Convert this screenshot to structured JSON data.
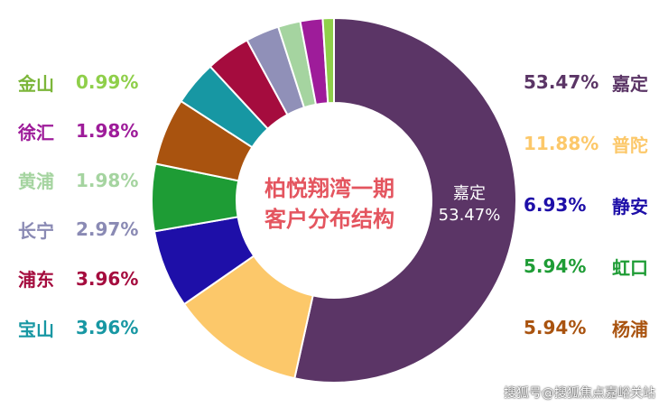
{
  "chart_data": {
    "type": "pie",
    "title_line1": "柏悦翔湾一期",
    "title_line2": "客户分布结构",
    "slices": [
      {
        "name": "嘉定",
        "label": "53.47%",
        "value": 53.47,
        "color": "#5b3566"
      },
      {
        "name": "普陀",
        "label": "11.88%",
        "value": 11.88,
        "color": "#fcc86a"
      },
      {
        "name": "静安",
        "label": "6.93%",
        "value": 6.93,
        "color": "#1e0fa8"
      },
      {
        "name": "虹口",
        "label": "5.94%",
        "value": 5.94,
        "color": "#1e9c35"
      },
      {
        "name": "杨浦",
        "label": "5.94%",
        "value": 5.94,
        "color": "#a9530f"
      },
      {
        "name": "宝山",
        "label": "3.96%",
        "value": 3.96,
        "color": "#1797a3"
      },
      {
        "name": "浦东",
        "label": "3.96%",
        "value": 3.96,
        "color": "#a50c3e"
      },
      {
        "name": "长宁",
        "label": "2.97%",
        "value": 2.97,
        "color": "#9090b8"
      },
      {
        "name": "黄浦",
        "label": "1.98%",
        "value": 1.98,
        "color": "#a5d4a0"
      },
      {
        "name": "徐汇",
        "label": "1.98%",
        "value": 1.98,
        "color": "#9e1c9a"
      },
      {
        "name": "金山",
        "label": "0.99%",
        "value": 0.99,
        "color": "#8fcf4a"
      }
    ],
    "inner_label": {
      "name": "嘉定",
      "value": "53.47%"
    }
  },
  "legend_left": [
    {
      "name": "金山",
      "value": "0.99%",
      "name_color": "#7cb63a",
      "value_color": "#8fcf4a"
    },
    {
      "name": "徐汇",
      "value": "1.98%",
      "name_color": "#9e1c9a",
      "value_color": "#9e1c9a"
    },
    {
      "name": "黄浦",
      "value": "1.98%",
      "name_color": "#a5d4a0",
      "value_color": "#a5d4a0"
    },
    {
      "name": "长宁",
      "value": "2.97%",
      "name_color": "#8a8ab4",
      "value_color": "#8a8ab4"
    },
    {
      "name": "浦东",
      "value": "3.96%",
      "name_color": "#a50c3e",
      "value_color": "#a50c3e"
    },
    {
      "name": "宝山",
      "value": "3.96%",
      "name_color": "#1797a3",
      "value_color": "#1797a3"
    }
  ],
  "legend_right": [
    {
      "name": "嘉定",
      "value": "53.47%",
      "name_color": "#5b3566",
      "value_color": "#5b3566"
    },
    {
      "name": "普陀",
      "value": "11.88%",
      "name_color": "#fcc86a",
      "value_color": "#fcc86a"
    },
    {
      "name": "静安",
      "value": "6.93%",
      "name_color": "#1e0fa8",
      "value_color": "#1e0fa8"
    },
    {
      "name": "虹口",
      "value": "5.94%",
      "name_color": "#1e9c35",
      "value_color": "#1e9c35"
    },
    {
      "name": "杨浦",
      "value": "5.94%",
      "name_color": "#a9530f",
      "value_color": "#a9530f"
    }
  ],
  "watermark": "搜狐号@搜狐焦点嘉峪关站"
}
